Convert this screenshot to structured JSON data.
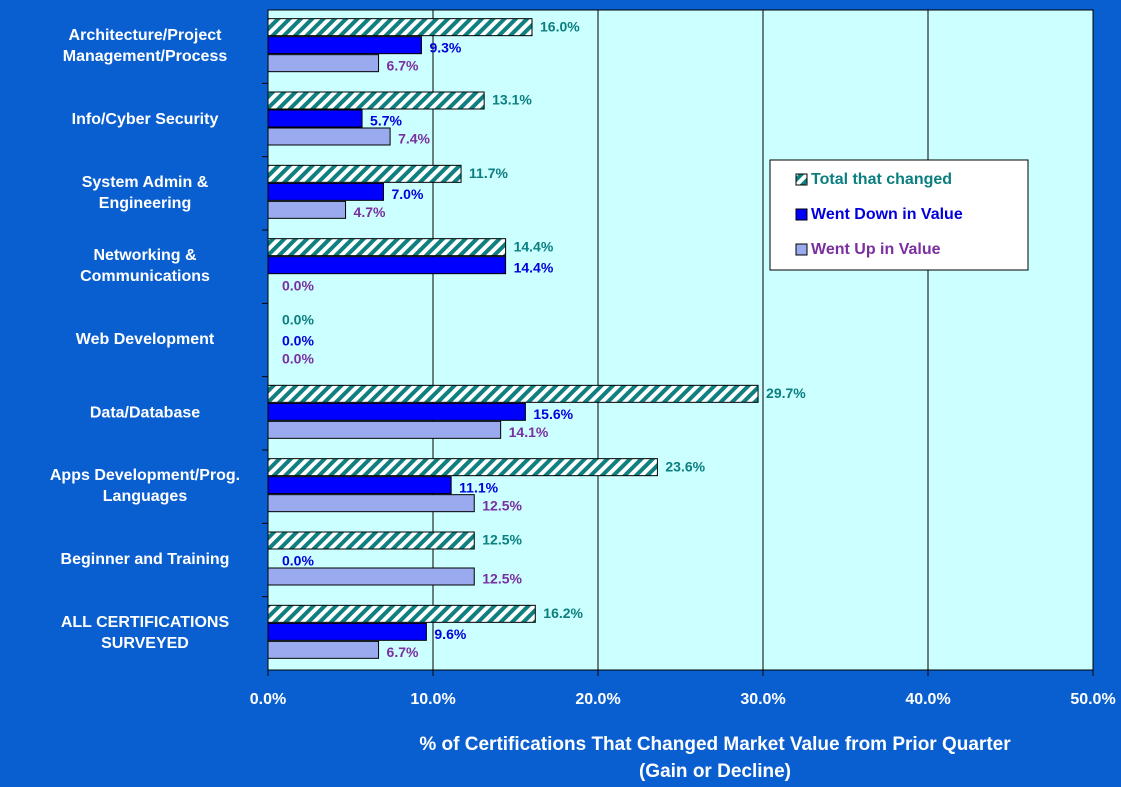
{
  "chart_data": {
    "type": "hbar",
    "categories": [
      "Architecture/Project\nManagement/Process",
      "Info/Cyber Security",
      "System Admin &\nEngineering",
      "Networking &\nCommunications",
      "Web Development",
      "Data/Database",
      "Apps Development/Prog.\nLanguages",
      "Beginner and Training",
      "ALL CERTIFICATIONS\nSURVEYED"
    ],
    "series": [
      {
        "name": "Total that changed",
        "color": "#0f7f7f",
        "label_color": "#0b7f7f",
        "hatch": true,
        "values": [
          16.0,
          13.1,
          11.7,
          14.4,
          0.0,
          29.7,
          23.6,
          12.5,
          16.2
        ],
        "value_labels": [
          "16.0%",
          "13.1%",
          "11.7%",
          "14.4%",
          "0.0%",
          "29.7%",
          "23.6%",
          "12.5%",
          "16.2%"
        ]
      },
      {
        "name": "Went Down in Value",
        "color": "#0000ff",
        "label_color": "#0000dd",
        "values": [
          9.3,
          5.7,
          7.0,
          14.4,
          0.0,
          15.6,
          11.1,
          0.0,
          9.6
        ],
        "value_labels": [
          "9.3%",
          "5.7%",
          "7.0%",
          "14.4%",
          "0.0%",
          "15.6%",
          "11.1%",
          "0.0%",
          "9.6%"
        ]
      },
      {
        "name": "Went Up in Value",
        "color": "#99aaee",
        "label_color": "#7a2fa0",
        "values": [
          6.7,
          7.4,
          4.7,
          0.0,
          0.0,
          14.1,
          12.5,
          12.5,
          6.7
        ],
        "value_labels": [
          "6.7%",
          "7.4%",
          "4.7%",
          "0.0%",
          "0.0%",
          "14.1%",
          "12.5%",
          "12.5%",
          "6.7%"
        ]
      }
    ],
    "xlim": [
      0,
      50
    ],
    "xticks": [
      {
        "value": 0,
        "label": "0.0%"
      },
      {
        "value": 10,
        "label": "10.0%"
      },
      {
        "value": 20,
        "label": "20.0%"
      },
      {
        "value": 30,
        "label": "30.0%"
      },
      {
        "value": 40,
        "label": "40.0%"
      },
      {
        "value": 50,
        "label": "50.0%"
      }
    ],
    "x_label": [
      "% of Certifications That Changed Market Value from Prior Quarter",
      "(Gain or Decline)"
    ],
    "grid": true,
    "legend": "right"
  }
}
